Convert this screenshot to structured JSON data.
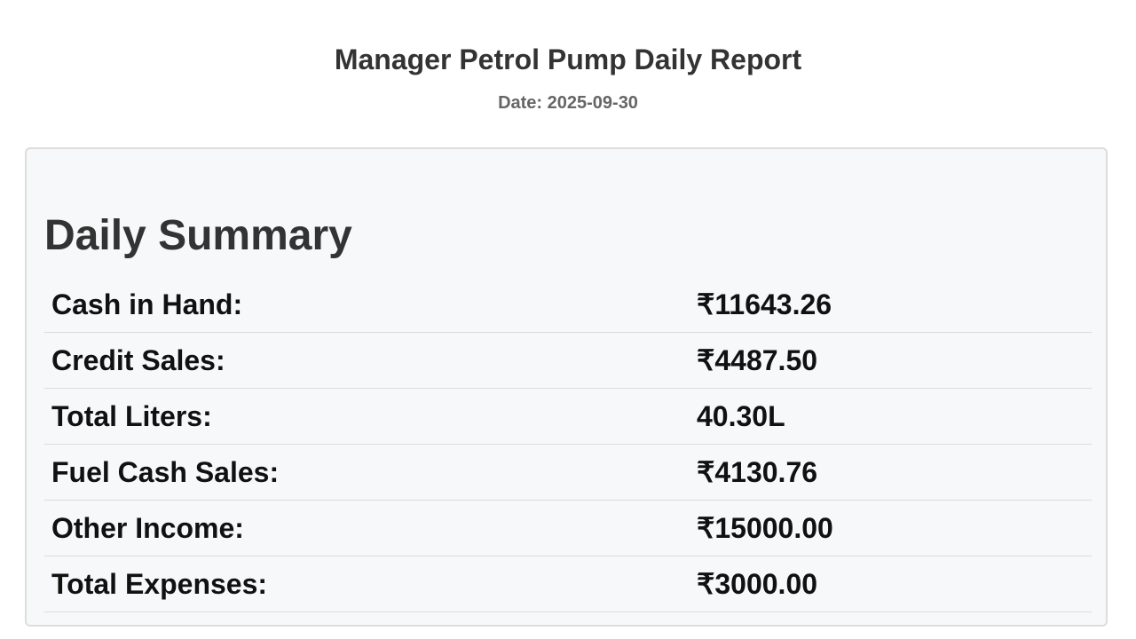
{
  "header": {
    "title": "Manager Petrol Pump Daily Report",
    "date": "Date: 2025-09-30"
  },
  "summary": {
    "heading": "Daily Summary",
    "rows": [
      {
        "label": "Cash in Hand:",
        "value": "₹11643.26"
      },
      {
        "label": "Credit Sales:",
        "value": "₹4487.50"
      },
      {
        "label": "Total Liters:",
        "value": "40.30L"
      },
      {
        "label": "Fuel Cash Sales:",
        "value": "₹4130.76"
      },
      {
        "label": "Other Income:",
        "value": "₹15000.00"
      },
      {
        "label": "Total Expenses:",
        "value": "₹3000.00"
      }
    ]
  }
}
